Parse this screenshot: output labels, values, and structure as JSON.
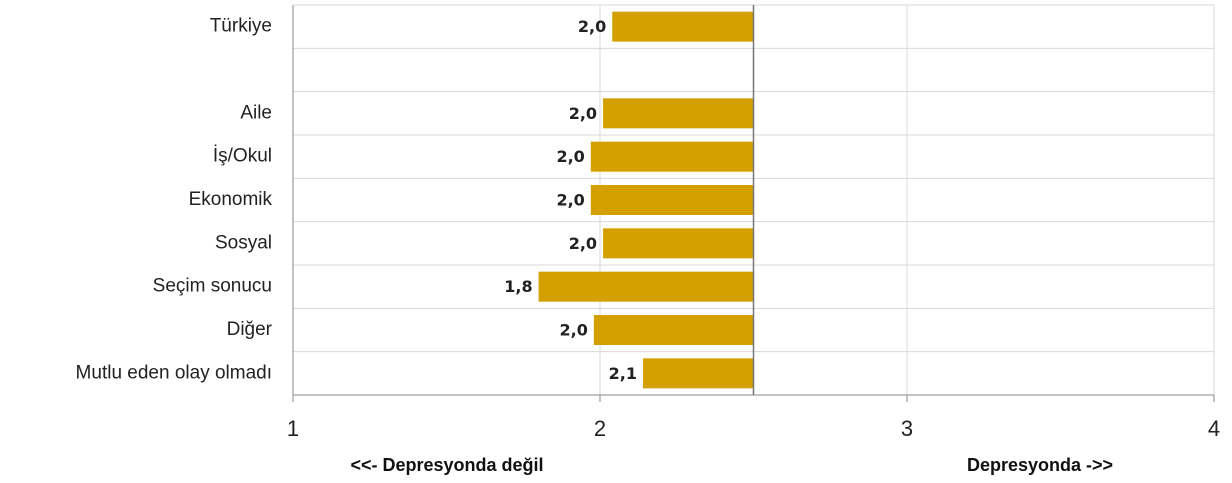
{
  "chart_data": {
    "type": "bar",
    "orientation": "horizontal",
    "categories": [
      "Türkiye",
      null,
      "Aile",
      "İş/Okul",
      "Ekonomik",
      "Sosyal",
      "Seçim sonucu",
      "Diğer",
      "Mutlu eden olay olmadı"
    ],
    "values": [
      2.04,
      null,
      2.01,
      1.97,
      1.97,
      2.01,
      1.8,
      1.98,
      2.14
    ],
    "value_labels": [
      "2,0",
      null,
      "2,0",
      "2,0",
      "2,0",
      "2,0",
      "1,8",
      "2,0",
      "2,1"
    ],
    "baseline": 2.5,
    "color": "#d4a000",
    "xlim": [
      1,
      4
    ],
    "xticks": [
      1,
      2,
      3,
      4
    ],
    "grid": true,
    "annotations": [
      "<<- Depresyonda değil",
      "Depresyonda ->>"
    ]
  }
}
